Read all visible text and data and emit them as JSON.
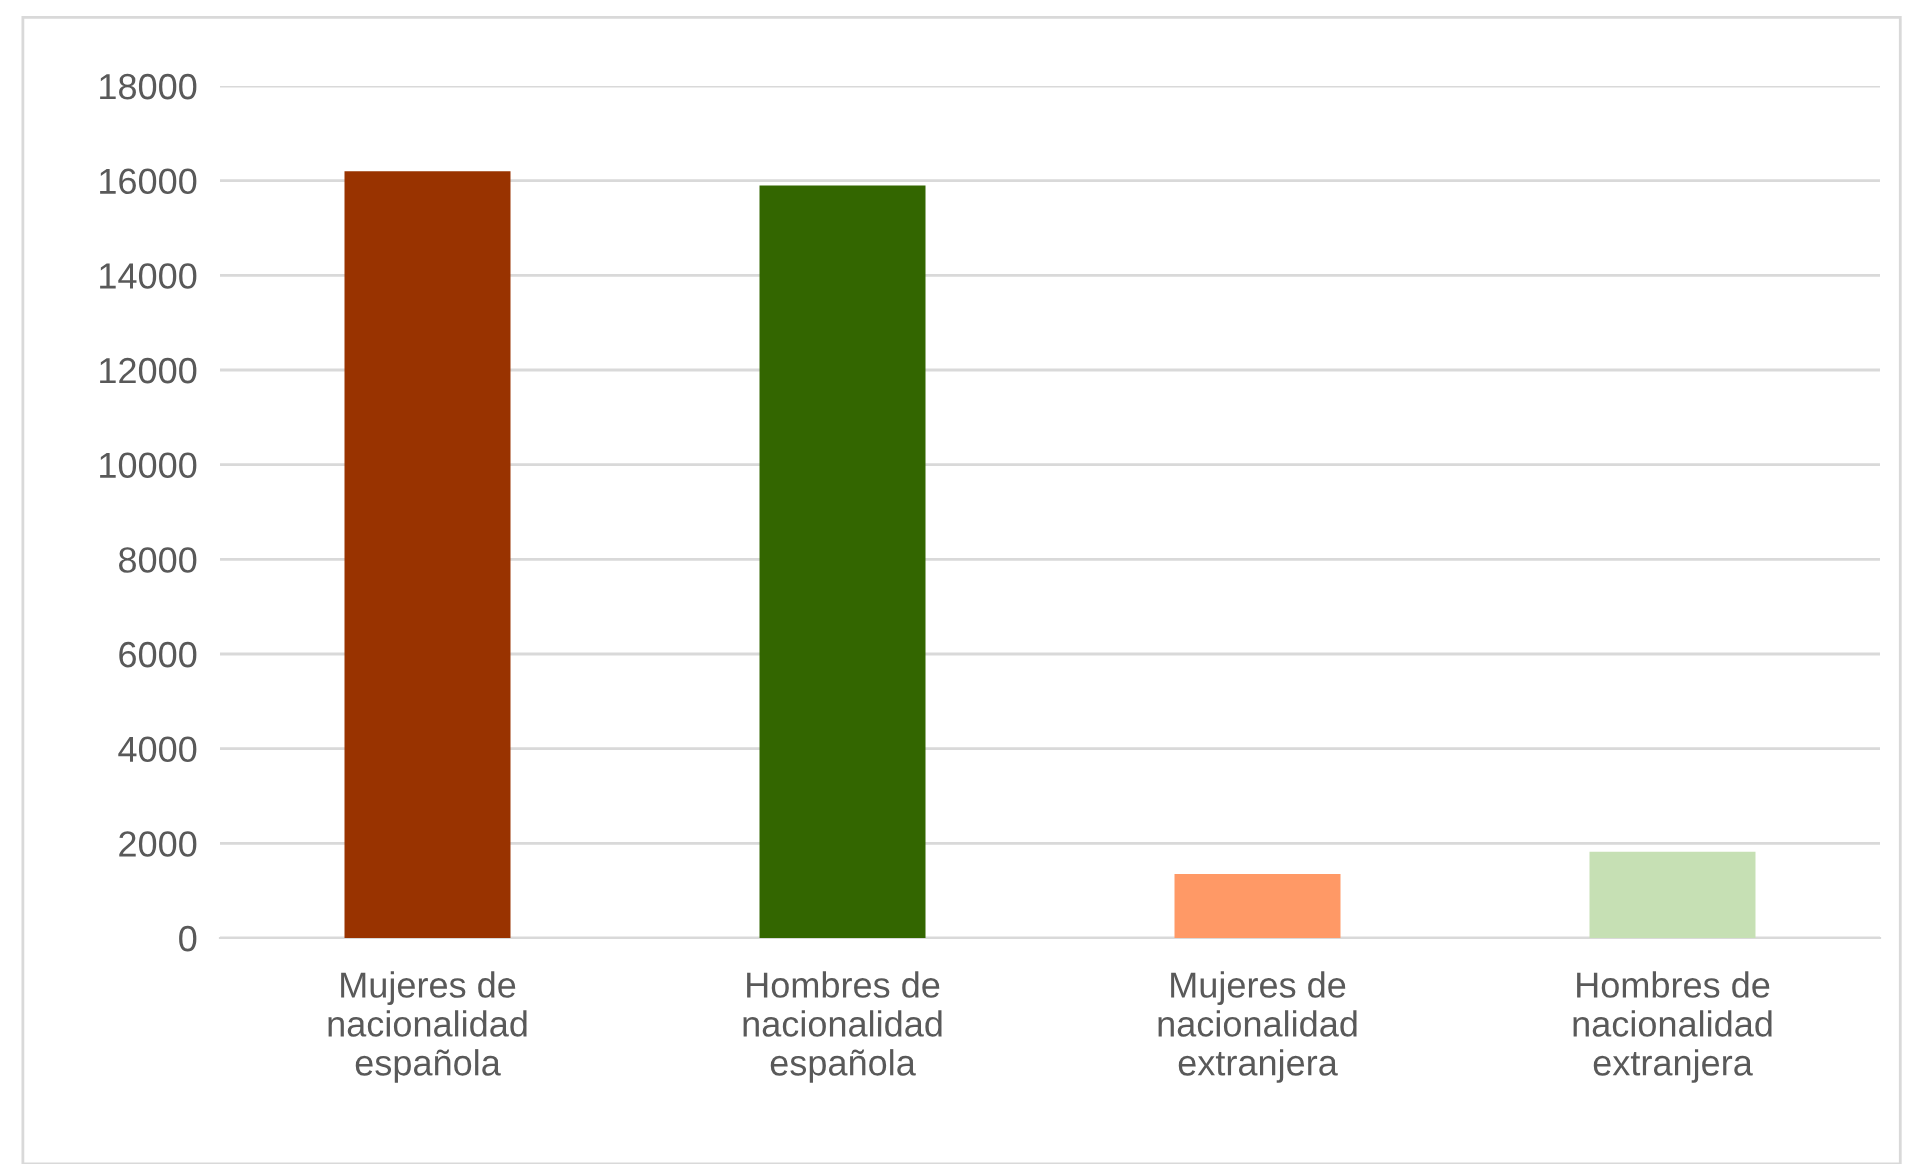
{
  "chart_data": {
    "type": "bar",
    "categories": [
      "Mujeres de nacionalidad española",
      "Hombres de nacionalidad española",
      "Mujeres de nacionalidad extranjera",
      "Hombres de nacionalidad extranjera"
    ],
    "values": [
      16200,
      15900,
      1350,
      1820
    ],
    "colors": [
      "#993300",
      "#336600",
      "#ff9966",
      "#c6e0b4"
    ],
    "ylim": [
      0,
      18000
    ],
    "yticks": [
      0,
      2000,
      4000,
      6000,
      8000,
      10000,
      12000,
      14000,
      16000,
      18000
    ],
    "grid": "y"
  }
}
